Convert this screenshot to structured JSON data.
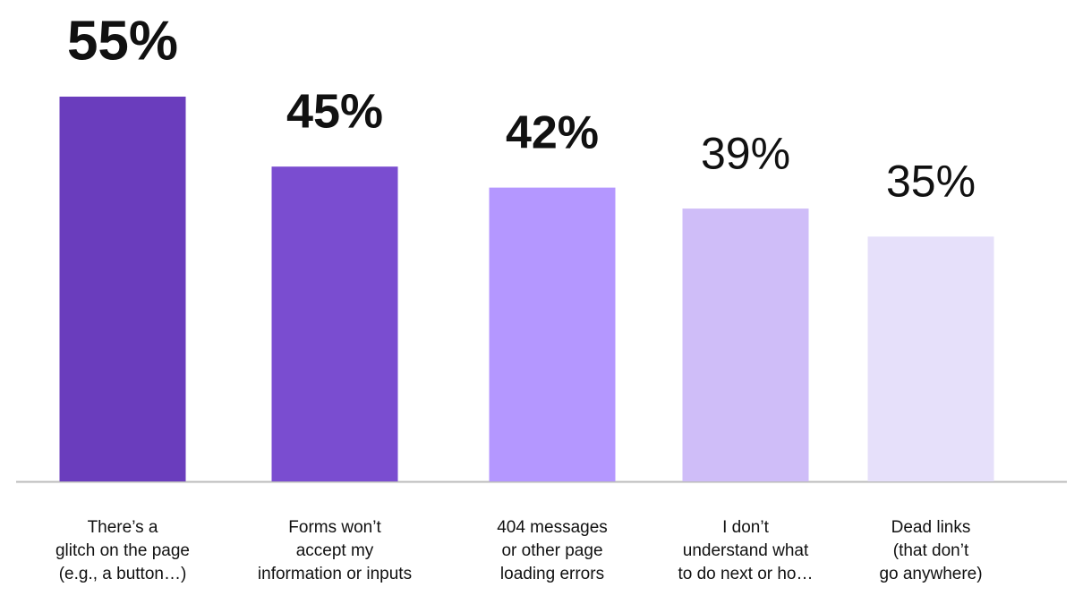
{
  "chart_data": {
    "type": "bar",
    "categories": [
      "There’s a\nglitch on the page\n(e.g., a button…)",
      "Forms won’t\naccept my\ninformation or inputs",
      "404 messages\nor other page\nloading errors",
      "I don’t\nunderstand what\nto do next or ho…",
      "Dead links\n(that don’t\ngo anywhere)"
    ],
    "values": [
      55,
      45,
      42,
      39,
      35
    ],
    "value_labels": [
      "55%",
      "45%",
      "42%",
      "39%",
      "35%"
    ],
    "colors": [
      "#6a3dbd",
      "#7a4dd0",
      "#b497ff",
      "#cfbdf8",
      "#e6e0fa"
    ]
  }
}
